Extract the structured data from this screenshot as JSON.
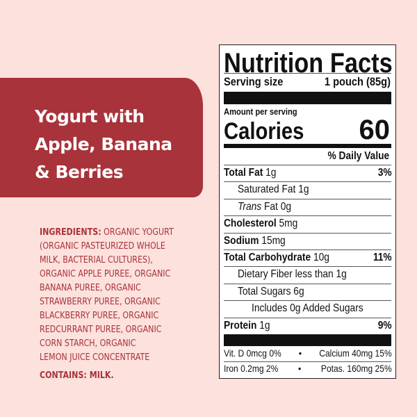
{
  "product": {
    "title_lines": [
      "Yogurt with",
      "Apple, Banana",
      "& Berries"
    ]
  },
  "ingredients": {
    "label": "INGREDIENTS:",
    "lines": [
      " ORGANIC YOGURT",
      "(ORGANIC PASTEURIZED WHOLE",
      "MILK, BACTERIAL CULTURES),",
      "ORGANIC APPLE PUREE, ORGANIC",
      "BANANA PUREE, ORGANIC",
      "STRAWBERRY PUREE, ORGANIC",
      "BLACKBERRY PUREE, ORGANIC",
      "REDCURRANT PUREE, ORGANIC",
      "CORN STARCH, ORGANIC",
      "LEMON JUICE CONCENTRATE"
    ],
    "contains": "CONTAINS: MILK."
  },
  "colors": {
    "background": "#fde1dd",
    "accent": "#a8333a"
  },
  "nutrition": {
    "title": "Nutrition Facts",
    "serving_label": "Serving size",
    "serving_value": "1 pouch (85g)",
    "amount_per_serving": "Amount per serving",
    "calories_label": "Calories",
    "calories_value": "60",
    "dv_header": "% Daily Value",
    "rows": [
      {
        "name": "Total Fat",
        "amount": "1g",
        "dv": "3%"
      },
      {
        "name": "Saturated Fat 1g",
        "amount": "",
        "dv": ""
      },
      {
        "name": "Trans",
        "amount": "Fat 0g",
        "dv": ""
      },
      {
        "name": "Cholesterol",
        "amount": "5mg",
        "dv": ""
      },
      {
        "name": "Sodium",
        "amount": "15mg",
        "dv": ""
      },
      {
        "name": "Total Carbohydrate",
        "amount": "10g",
        "dv": "11%"
      },
      {
        "name": "Dietary Fiber less than 1g",
        "amount": "",
        "dv": ""
      },
      {
        "name": "Total Sugars 6g",
        "amount": "",
        "dv": ""
      },
      {
        "name": "Includes 0g Added Sugars",
        "amount": "",
        "dv": ""
      },
      {
        "name": "Protein",
        "amount": "1g",
        "dv": "9%"
      }
    ],
    "micros": [
      {
        "left": "Vit. D 0mcg 0%",
        "sep": "•",
        "right": "Calcium 40mg 15%"
      },
      {
        "left": "Iron 0.2mg 2%",
        "sep": "•",
        "right": "Potas. 160mg 25%"
      }
    ]
  }
}
